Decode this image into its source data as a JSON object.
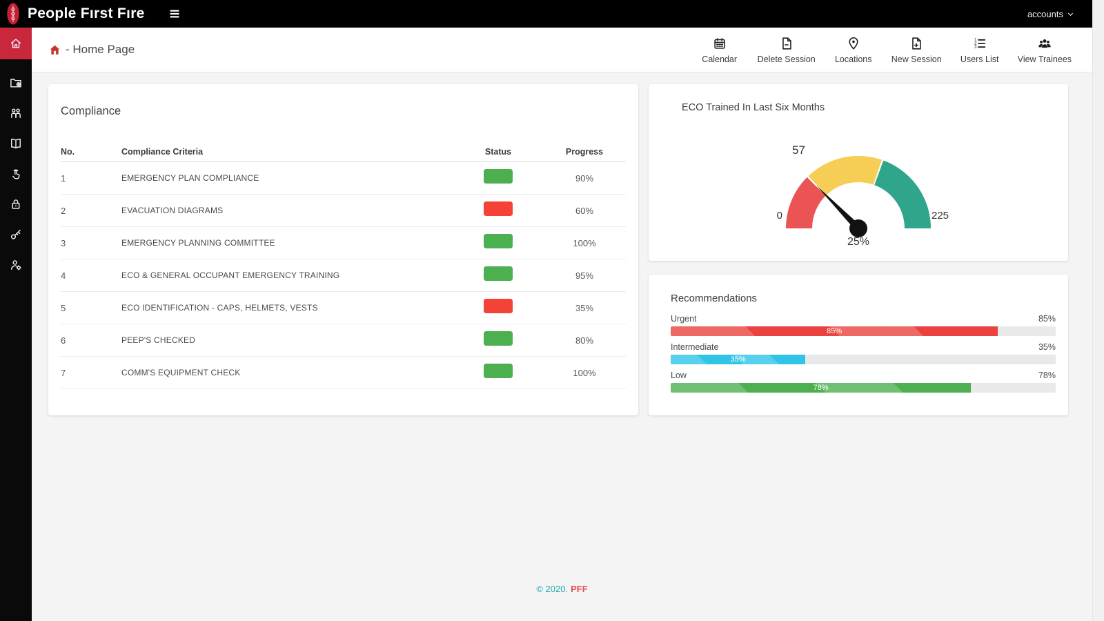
{
  "topbar": {
    "brand": "People Fırst Fıre",
    "account_label": "accounts"
  },
  "sidebar": {
    "items": [
      {
        "icon": "home-icon",
        "active": true
      },
      {
        "icon": "folder-plus-icon",
        "active": false
      },
      {
        "icon": "users-icon",
        "active": false
      },
      {
        "icon": "book-icon",
        "active": false
      },
      {
        "icon": "touch-icon",
        "active": false
      },
      {
        "icon": "lock-icon",
        "active": false
      },
      {
        "icon": "key-icon",
        "active": false
      },
      {
        "icon": "user-gear-icon",
        "active": false
      }
    ]
  },
  "breadcrumb": {
    "home_icon": "home-icon",
    "label": "- Home Page"
  },
  "actions": [
    {
      "icon": "calendar-icon",
      "label": "Calendar"
    },
    {
      "icon": "file-minus-icon",
      "label": "Delete Session"
    },
    {
      "icon": "map-pin-icon",
      "label": "Locations"
    },
    {
      "icon": "file-plus-icon",
      "label": "New Session"
    },
    {
      "icon": "list-ol-icon",
      "label": "Users List"
    },
    {
      "icon": "users-group-icon",
      "label": "View Trainees"
    }
  ],
  "compliance": {
    "title": "Compliance",
    "columns": [
      "No.",
      "Compliance Criteria",
      "Status",
      "Progress"
    ],
    "rows": [
      {
        "no": "1",
        "criteria": "EMERGENCY PLAN COMPLIANCE",
        "status_color": "#4caf50",
        "progress": "90%"
      },
      {
        "no": "2",
        "criteria": "EVACUATION DIAGRAMS",
        "status_color": "#f44336",
        "progress": "60%"
      },
      {
        "no": "3",
        "criteria": "EMERGENCY PLANNING COMMITTEE",
        "status_color": "#4caf50",
        "progress": "100%"
      },
      {
        "no": "4",
        "criteria": "ECO & GENERAL OCCUPANT EMERGENCY TRAINING",
        "status_color": "#4caf50",
        "progress": "95%"
      },
      {
        "no": "5",
        "criteria": "ECO IDENTIFICATION - CAPS, HELMETS, VESTS",
        "status_color": "#f44336",
        "progress": "35%"
      },
      {
        "no": "6",
        "criteria": "PEEP'S CHECKED",
        "status_color": "#4caf50",
        "progress": "80%"
      },
      {
        "no": "7",
        "criteria": "COMM'S EQUIPMENT CHECK",
        "status_color": "#4caf50",
        "progress": "100%"
      }
    ]
  },
  "chart_data": [
    {
      "type": "gauge",
      "title": "ECO Trained In Last Six Months",
      "min": 0,
      "max": 225,
      "value": 57,
      "value_label": "25%",
      "threshold_label": "57",
      "min_label": "0",
      "max_label": "225",
      "segments": [
        {
          "from": 0,
          "to": 57,
          "color": "#ea5455"
        },
        {
          "from": 57,
          "to": 137,
          "color": "#f6ce55"
        },
        {
          "from": 137,
          "to": 225,
          "color": "#2fa58c"
        }
      ]
    },
    {
      "type": "bar",
      "title": "Recommendations",
      "orientation": "horizontal",
      "categories": [
        "Urgent",
        "Intermediate",
        "Low"
      ],
      "values": [
        85,
        35,
        78
      ],
      "value_labels": [
        "85%",
        "35%",
        "78%"
      ],
      "colors": [
        "#ea433f",
        "#2fc4e8",
        "#4caf50"
      ],
      "xlim": [
        0,
        100
      ],
      "legend": false
    }
  ],
  "footer": {
    "copyright": "© 2020.",
    "brand": "PFF"
  }
}
